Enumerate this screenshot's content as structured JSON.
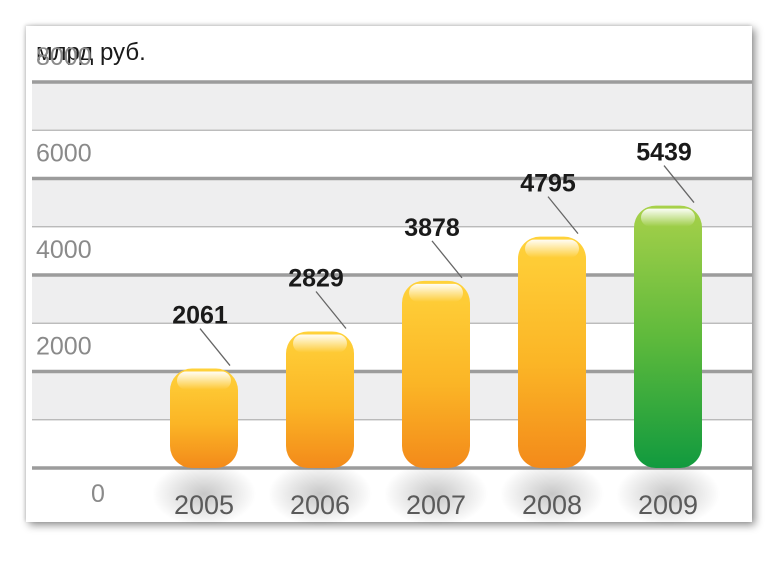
{
  "chart_data": {
    "type": "bar",
    "unit_label": "млрд руб.",
    "categories": [
      "2005",
      "2006",
      "2007",
      "2008",
      "2009"
    ],
    "values": [
      2061,
      2829,
      3878,
      4795,
      5439
    ],
    "value_labels": [
      "2061",
      "2829",
      "3878",
      "4795",
      "5439"
    ],
    "yticks": [
      "0",
      "2000",
      "4000",
      "6000",
      "8000"
    ],
    "ytick_values": [
      0,
      2000,
      4000,
      6000,
      8000
    ],
    "ylim": [
      0,
      8000
    ],
    "grid": true,
    "colors": {
      "bar": "#f7a21c",
      "highlight_bar": "#3fae3c",
      "band": "#eeeeef",
      "gridline": "#9c9c9c"
    },
    "highlight_index": 4
  }
}
